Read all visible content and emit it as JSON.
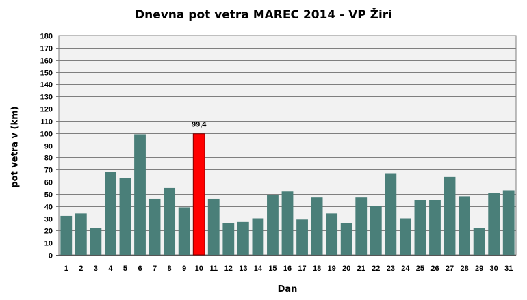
{
  "chart_data": {
    "type": "bar",
    "title": "Dnevna pot vetra MAREC 2014 - VP Žiri",
    "xlabel": "Dan",
    "ylabel": "pot vetra  v (km)",
    "ylim": [
      0,
      180
    ],
    "ytick_step": 10,
    "grid": true,
    "categories": [
      "1",
      "2",
      "3",
      "4",
      "5",
      "6",
      "7",
      "8",
      "9",
      "10",
      "11",
      "12",
      "13",
      "14",
      "15",
      "16",
      "17",
      "18",
      "19",
      "20",
      "21",
      "22",
      "23",
      "24",
      "25",
      "26",
      "27",
      "28",
      "29",
      "30",
      "31"
    ],
    "values": [
      32,
      34,
      22,
      68,
      63,
      99,
      46,
      55,
      39,
      99.4,
      46,
      26,
      27,
      30,
      49,
      52,
      29,
      47,
      34,
      26,
      47,
      40,
      67,
      30,
      45,
      45,
      64,
      48,
      22,
      51,
      53
    ],
    "highlight_index": 9,
    "highlight_label": "99,4",
    "colors": {
      "bar": "#4a7f79",
      "highlight": "#ff0000",
      "plot_bg": "#f2f2f2",
      "grid": "#7f7f7f"
    }
  }
}
